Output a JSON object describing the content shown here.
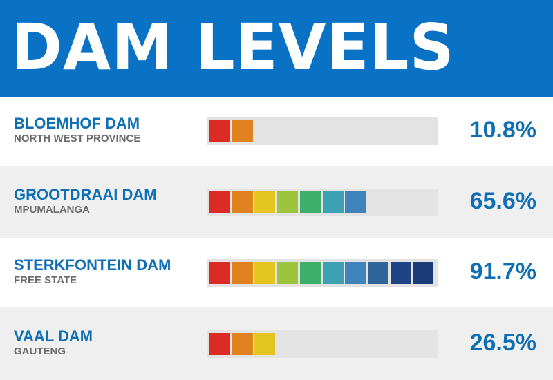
{
  "title": "DAM LEVELS",
  "colors": {
    "header": "#0a72c4",
    "name_text": "#0e6fb5",
    "segments": [
      "#dc2b24",
      "#e0821f",
      "#e2c51f",
      "#9cc43d",
      "#3daf6a",
      "#3ea1b3",
      "#3f83bb",
      "#2e6497",
      "#1f4483",
      "#1a3a78"
    ]
  },
  "chart_data": {
    "type": "bar",
    "unit": "%",
    "xlim": [
      0,
      100
    ],
    "categories": [
      "BLOEMHOF DAM",
      "GROOTDRAAI DAM",
      "STERKFONTEIN DAM",
      "VAAL DAM"
    ],
    "values": [
      10.8,
      65.6,
      91.7,
      26.5
    ],
    "rows": [
      {
        "name": "BLOEMHOF DAM",
        "region": "NORTH WEST PROVINCE",
        "value": 10.8,
        "label": "10.8%"
      },
      {
        "name": "GROOTDRAAI DAM",
        "region": "MPUMALANGA",
        "value": 65.6,
        "label": "65.6%"
      },
      {
        "name": "STERKFONTEIN DAM",
        "region": "FREE STATE",
        "value": 91.7,
        "label": "91.7%"
      },
      {
        "name": "VAAL DAM",
        "region": "GAUTENG",
        "value": 26.5,
        "label": "26.5%"
      }
    ]
  }
}
